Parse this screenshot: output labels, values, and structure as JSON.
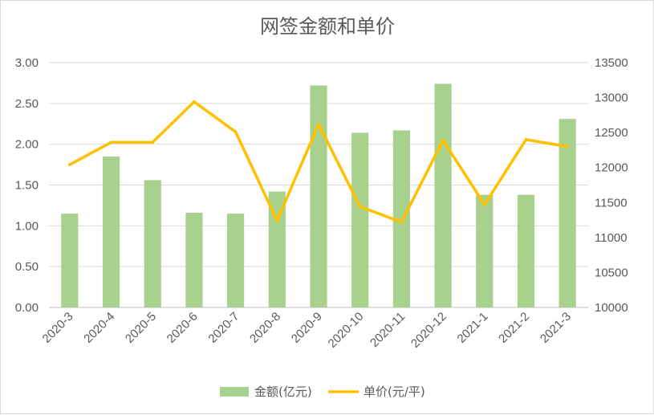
{
  "chart_data": {
    "type": "bar",
    "title": "网签金额和单价",
    "categories": [
      "2020-3",
      "2020-4",
      "2020-5",
      "2020-6",
      "2020-7",
      "2020-8",
      "2020-9",
      "2020-10",
      "2020-11",
      "2020-12",
      "2021-1",
      "2021-2",
      "2021-3"
    ],
    "series": [
      {
        "name": "金额(亿元)",
        "type": "bar",
        "axis": "left",
        "color": "#a9d18e",
        "values": [
          1.15,
          1.85,
          1.56,
          1.16,
          1.15,
          1.42,
          2.72,
          2.14,
          2.17,
          2.74,
          1.38,
          1.38,
          2.31
        ]
      },
      {
        "name": "单价(元/平)",
        "type": "line",
        "axis": "right",
        "color": "#ffc000",
        "values": [
          12040,
          12360,
          12360,
          12940,
          12510,
          11240,
          12620,
          11440,
          11220,
          12390,
          11470,
          12400,
          12300
        ]
      }
    ],
    "y_left": {
      "ylim": [
        0,
        3
      ],
      "ticks": [
        "0.00",
        "0.50",
        "1.00",
        "1.50",
        "2.00",
        "2.50",
        "3.00"
      ]
    },
    "y_right": {
      "ylim": [
        10000,
        13500
      ],
      "ticks": [
        "10000",
        "10500",
        "11000",
        "11500",
        "12000",
        "12500",
        "13000",
        "13500"
      ]
    },
    "grid": true,
    "legend": "bottom"
  }
}
